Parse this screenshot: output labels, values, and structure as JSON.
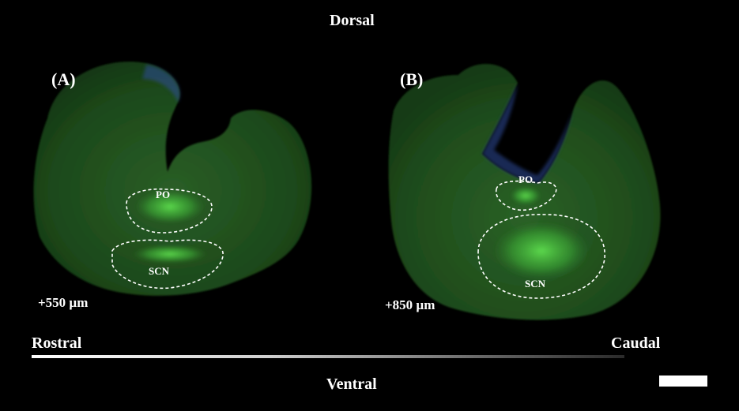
{
  "axes": {
    "top": "Dorsal",
    "bottom": "Ventral",
    "left": "Rostral",
    "right": "Caudal"
  },
  "panels": [
    {
      "label": "(A)",
      "depth": "+550 µm",
      "regions": [
        "PO",
        "SCN"
      ]
    },
    {
      "label": "(B)",
      "depth": "+850 µm",
      "regions": [
        "PO",
        "SCN"
      ]
    }
  ],
  "colors": {
    "background": "#000000",
    "tissue": "#1f4a1c",
    "fluorescence": "#3fbf3a",
    "nuclear_stain": "#2f4fd8",
    "outline": "#ffffff"
  }
}
